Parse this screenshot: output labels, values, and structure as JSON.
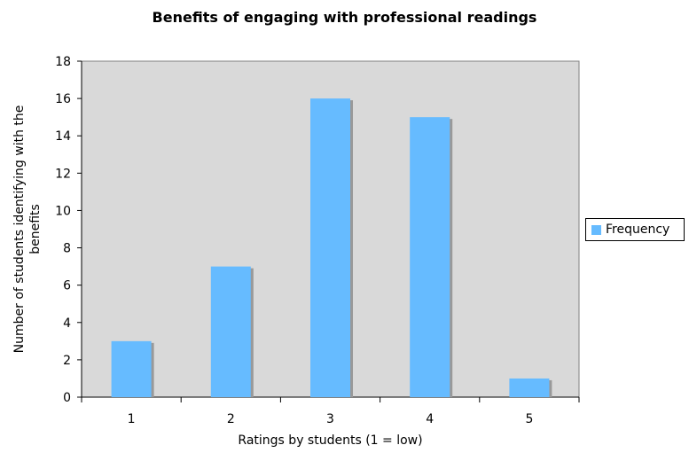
{
  "chart_data": {
    "type": "bar",
    "title": "Benefits of engaging with professional readings",
    "xlabel": "Ratings by students (1 = low)",
    "ylabel": [
      "Number of students identifying with the",
      "benefits"
    ],
    "categories": [
      "1",
      "2",
      "3",
      "4",
      "5"
    ],
    "series": [
      {
        "name": "Frequency",
        "values": [
          3,
          7,
          16,
          15,
          1
        ]
      }
    ],
    "ylim": [
      0,
      18
    ],
    "yticks": [
      0,
      2,
      4,
      6,
      8,
      10,
      12,
      14,
      16,
      18
    ],
    "grid": false,
    "legend": "right",
    "colors": {
      "bar": "#66bbff",
      "bar_shadow": "#999999",
      "plot_background": "#d9d9d9",
      "axis": "#000000"
    }
  }
}
